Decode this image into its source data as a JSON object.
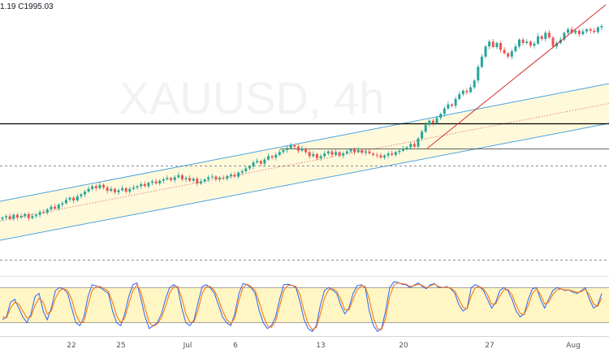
{
  "header": {
    "ohlc_fragment": "1.19  C1995.03"
  },
  "watermark": {
    "symbol": "XAUUSD",
    "interval": "4h"
  },
  "colors": {
    "up": "#26a69a",
    "down": "#ef5350",
    "channel_line": "#4aa3df",
    "channel_fill": "#fff8d6",
    "midline": "#e06666",
    "trendline": "#d32f2f",
    "osc_k": "#2962ff",
    "osc_d": "#ff6d00",
    "osc_band": "#fff6c4"
  },
  "chart_data": [
    {
      "type": "candlestick",
      "title": "",
      "symbol": "XAUUSD",
      "interval": "4h",
      "x_tick_labels": [
        "22",
        "25",
        "Jul",
        "6",
        "13",
        "20",
        "27",
        "Aug"
      ],
      "last_close": 1995.03,
      "candles_close": [
        1714,
        1716,
        1712,
        1718,
        1714,
        1716,
        1719,
        1713,
        1716,
        1718,
        1722,
        1721,
        1726,
        1730,
        1727,
        1733,
        1735,
        1740,
        1743,
        1739,
        1745,
        1748,
        1752,
        1756,
        1760,
        1757,
        1762,
        1758,
        1753,
        1756,
        1751,
        1754,
        1757,
        1752,
        1756,
        1758,
        1760,
        1763,
        1760,
        1765,
        1767,
        1764,
        1768,
        1770,
        1772,
        1769,
        1773,
        1776,
        1770,
        1772,
        1768,
        1771,
        1764,
        1767,
        1770,
        1773,
        1774,
        1770,
        1772,
        1771,
        1775,
        1777,
        1774,
        1780,
        1782,
        1786,
        1789,
        1795,
        1797,
        1793,
        1799,
        1804,
        1802,
        1806,
        1810,
        1813,
        1816,
        1820,
        1818,
        1812,
        1815,
        1810,
        1804,
        1807,
        1801,
        1804,
        1808,
        1811,
        1806,
        1810,
        1805,
        1808,
        1811,
        1814,
        1810,
        1813,
        1809,
        1811,
        1808,
        1806,
        1805,
        1802,
        1805,
        1808,
        1806,
        1810,
        1812,
        1815,
        1817,
        1822,
        1818,
        1830,
        1840,
        1850,
        1856,
        1852,
        1860,
        1866,
        1874,
        1880,
        1878,
        1888,
        1895,
        1900,
        1898,
        1905,
        1915,
        1935,
        1950,
        1965,
        1972,
        1964,
        1970,
        1960,
        1955,
        1950,
        1958,
        1965,
        1975,
        1970,
        1972,
        1966,
        1969,
        1980,
        1976,
        1985,
        1978,
        1965,
        1970,
        1975,
        1985,
        1990,
        1985,
        1988,
        1983,
        1987,
        1990,
        1988,
        1986,
        1993,
        1995.03
      ]
    },
    {
      "type": "line",
      "title": "",
      "series": [
        {
          "values": [
            25,
            30,
            55,
            60,
            45,
            30,
            20,
            35,
            65,
            70,
            40,
            25,
            45,
            75,
            80,
            78,
            70,
            45,
            20,
            15,
            30,
            65,
            85,
            83,
            80,
            75,
            70,
            40,
            20,
            15,
            35,
            65,
            85,
            88,
            60,
            30,
            10,
            15,
            20,
            35,
            60,
            80,
            85,
            80,
            45,
            20,
            15,
            25,
            55,
            82,
            85,
            80,
            70,
            50,
            30,
            20,
            15,
            35,
            70,
            87,
            85,
            80,
            70,
            40,
            20,
            10,
            15,
            30,
            60,
            85,
            86,
            84,
            80,
            55,
            25,
            10,
            5,
            15,
            50,
            75,
            80,
            76,
            70,
            50,
            35,
            45,
            70,
            83,
            85,
            80,
            40,
            15,
            5,
            10,
            40,
            80,
            90,
            89,
            86,
            85,
            80,
            84,
            88,
            82,
            78,
            85,
            87,
            80,
            80,
            82,
            78,
            70,
            50,
            40,
            45,
            80,
            85,
            82,
            75,
            60,
            45,
            55,
            75,
            80,
            75,
            60,
            40,
            30,
            35,
            60,
            78,
            80,
            60,
            45,
            60,
            75,
            80,
            78,
            75,
            76,
            72,
            70,
            75,
            80,
            60,
            45,
            50,
            70
          ]
        },
        {
          "values": [
            30,
            28,
            45,
            55,
            52,
            40,
            28,
            30,
            50,
            62,
            55,
            35,
            40,
            62,
            75,
            78,
            75,
            60,
            35,
            20,
            22,
            50,
            75,
            82,
            82,
            78,
            74,
            55,
            32,
            20,
            28,
            52,
            75,
            85,
            72,
            45,
            20,
            14,
            18,
            28,
            48,
            70,
            82,
            82,
            62,
            35,
            20,
            22,
            42,
            70,
            82,
            82,
            75,
            60,
            40,
            26,
            18,
            28,
            58,
            80,
            86,
            82,
            75,
            55,
            32,
            15,
            12,
            22,
            48,
            75,
            84,
            84,
            82,
            68,
            40,
            18,
            8,
            12,
            35,
            62,
            76,
            78,
            74,
            60,
            42,
            42,
            60,
            76,
            83,
            82,
            60,
            28,
            10,
            8,
            28,
            65,
            84,
            88,
            87,
            86,
            82,
            83,
            86,
            84,
            80,
            83,
            86,
            82,
            80,
            81,
            79,
            74,
            60,
            46,
            44,
            66,
            80,
            82,
            78,
            68,
            52,
            52,
            66,
            76,
            77,
            68,
            50,
            36,
            34,
            50,
            70,
            78,
            68,
            52,
            55,
            68,
            76,
            78,
            76,
            76,
            74,
            72,
            73,
            77,
            68,
            52,
            48,
            62
          ]
        }
      ],
      "ylim": [
        0,
        100
      ],
      "bands": [
        20,
        80
      ]
    }
  ]
}
